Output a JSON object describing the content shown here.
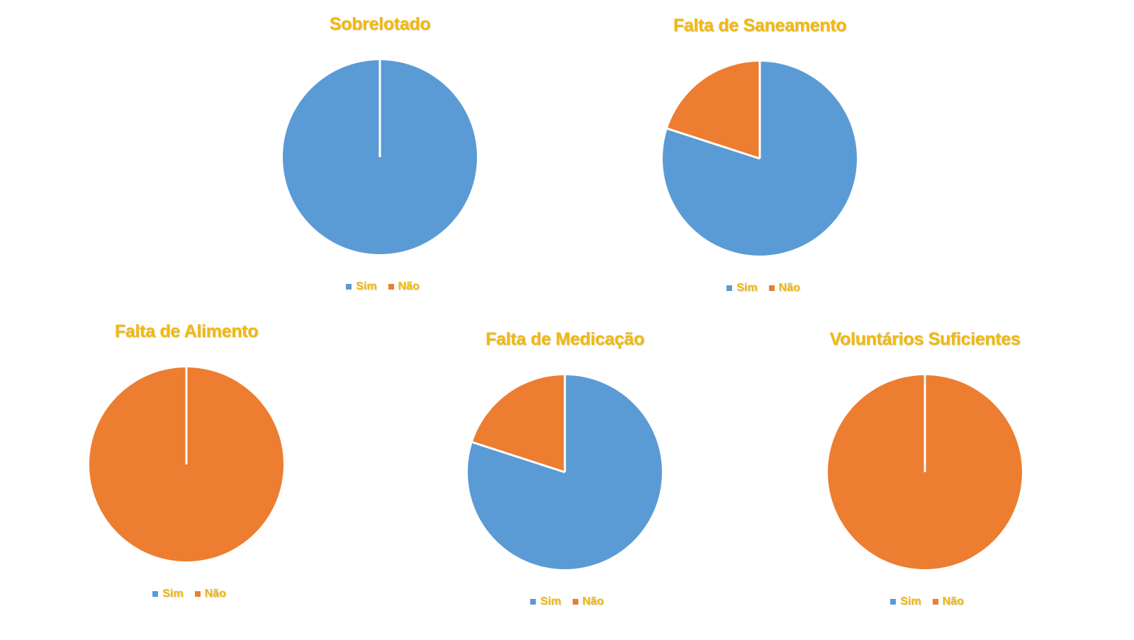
{
  "colors": {
    "sim": "#5b9bd5",
    "nao": "#ed7d31",
    "text": "#f2b90a",
    "divider": "#ffffff"
  },
  "chart_data": [
    {
      "type": "pie",
      "title": "Sobrelotado",
      "categories": [
        "Sim",
        "Não"
      ],
      "values": [
        100,
        0
      ],
      "legend": "bottom"
    },
    {
      "type": "pie",
      "title": "Falta de Saneamento",
      "categories": [
        "Sim",
        "Não"
      ],
      "values": [
        80,
        20
      ],
      "legend": "bottom"
    },
    {
      "type": "pie",
      "title": "Falta de Alimento",
      "categories": [
        "Sim",
        "Não"
      ],
      "values": [
        0,
        100
      ],
      "legend": "bottom"
    },
    {
      "type": "pie",
      "title": "Falta de Medicação",
      "categories": [
        "Sim",
        "Não"
      ],
      "values": [
        80,
        20
      ],
      "legend": "bottom"
    },
    {
      "type": "pie",
      "title": "Voluntários Suficientes",
      "categories": [
        "Sim",
        "Não"
      ],
      "values": [
        0,
        100
      ],
      "legend": "bottom"
    }
  ]
}
